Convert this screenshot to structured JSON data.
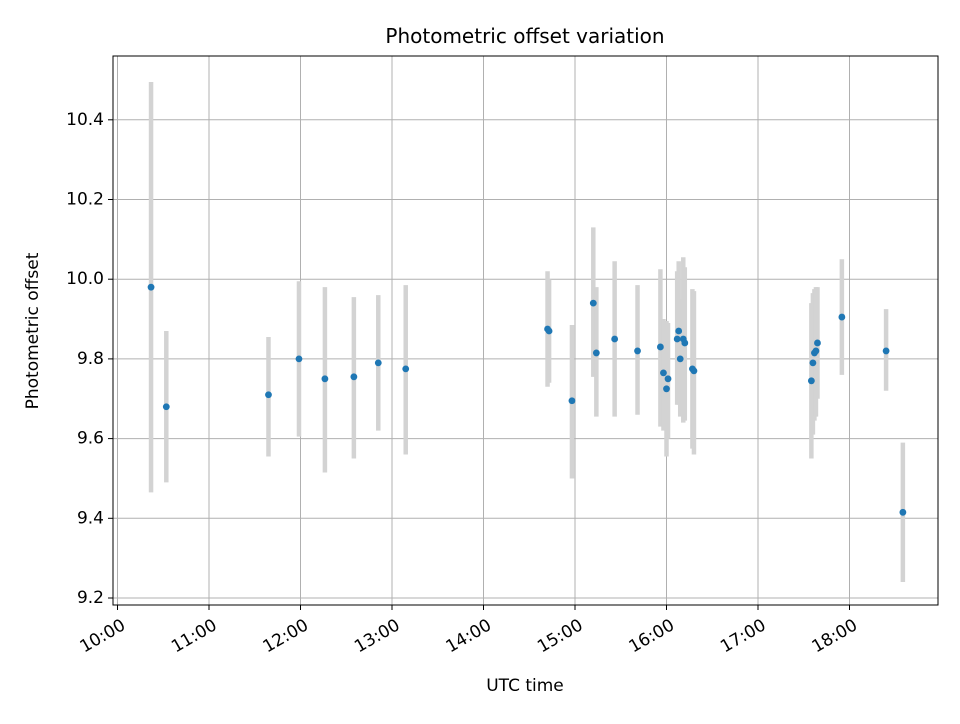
{
  "chart_data": {
    "type": "scatter",
    "title": "Photometric offset variation",
    "xlabel": "UTC time",
    "ylabel": "Photometric offset",
    "x_tick_labels": [
      "10:00",
      "11:00",
      "12:00",
      "13:00",
      "14:00",
      "15:00",
      "16:00",
      "17:00",
      "18:00"
    ],
    "y_tick_labels": [
      "9.2",
      "9.4",
      "9.6",
      "9.8",
      "10.0",
      "10.2",
      "10.4"
    ],
    "grid": true,
    "colors": {
      "point": "#1f77b4",
      "errorbar": "#d3d3d3",
      "grid": "#b0b0b0"
    },
    "points": [
      {
        "x": "10:22",
        "y": 9.98,
        "low": 9.465,
        "high": 10.495
      },
      {
        "x": "10:32",
        "y": 9.68,
        "low": 9.49,
        "high": 9.87
      },
      {
        "x": "11:39",
        "y": 9.71,
        "low": 9.555,
        "high": 9.855
      },
      {
        "x": "11:59",
        "y": 9.8,
        "low": 9.605,
        "high": 9.995
      },
      {
        "x": "12:16",
        "y": 9.75,
        "low": 9.515,
        "high": 9.98
      },
      {
        "x": "12:35",
        "y": 9.755,
        "low": 9.55,
        "high": 9.955
      },
      {
        "x": "12:51",
        "y": 9.79,
        "low": 9.62,
        "high": 9.96
      },
      {
        "x": "13:09",
        "y": 9.775,
        "low": 9.56,
        "high": 9.985
      },
      {
        "x": "14:42",
        "y": 9.875,
        "low": 9.73,
        "high": 10.02
      },
      {
        "x": "14:43",
        "y": 9.87,
        "low": 9.74,
        "high": 10.0
      },
      {
        "x": "14:58",
        "y": 9.695,
        "low": 9.5,
        "high": 9.885
      },
      {
        "x": "15:12",
        "y": 9.94,
        "low": 9.755,
        "high": 10.13
      },
      {
        "x": "15:14",
        "y": 9.815,
        "low": 9.655,
        "high": 9.98
      },
      {
        "x": "15:26",
        "y": 9.85,
        "low": 9.655,
        "high": 10.045
      },
      {
        "x": "15:41",
        "y": 9.82,
        "low": 9.66,
        "high": 9.985
      },
      {
        "x": "15:56",
        "y": 9.83,
        "low": 9.63,
        "high": 10.025
      },
      {
        "x": "15:58",
        "y": 9.765,
        "low": 9.62,
        "high": 9.9
      },
      {
        "x": "16:00",
        "y": 9.725,
        "low": 9.555,
        "high": 9.895
      },
      {
        "x": "16:01",
        "y": 9.75,
        "low": 9.6,
        "high": 9.89
      },
      {
        "x": "16:07",
        "y": 9.85,
        "low": 9.685,
        "high": 10.02
      },
      {
        "x": "16:08",
        "y": 9.87,
        "low": 9.685,
        "high": 10.045
      },
      {
        "x": "16:09",
        "y": 9.8,
        "low": 9.655,
        "high": 9.95
      },
      {
        "x": "16:11",
        "y": 9.85,
        "low": 9.64,
        "high": 10.055
      },
      {
        "x": "16:12",
        "y": 9.84,
        "low": 9.645,
        "high": 10.03
      },
      {
        "x": "16:17",
        "y": 9.775,
        "low": 9.575,
        "high": 9.975
      },
      {
        "x": "16:18",
        "y": 9.77,
        "low": 9.56,
        "high": 9.97
      },
      {
        "x": "17:35",
        "y": 9.745,
        "low": 9.55,
        "high": 9.94
      },
      {
        "x": "17:36",
        "y": 9.79,
        "low": 9.61,
        "high": 9.965
      },
      {
        "x": "17:37",
        "y": 9.815,
        "low": 9.645,
        "high": 9.975
      },
      {
        "x": "17:38",
        "y": 9.82,
        "low": 9.655,
        "high": 9.98
      },
      {
        "x": "17:39",
        "y": 9.84,
        "low": 9.7,
        "high": 9.98
      },
      {
        "x": "17:55",
        "y": 9.905,
        "low": 9.76,
        "high": 10.05
      },
      {
        "x": "18:24",
        "y": 9.82,
        "low": 9.72,
        "high": 9.925
      },
      {
        "x": "18:35",
        "y": 9.415,
        "low": 9.24,
        "high": 9.59
      }
    ]
  }
}
